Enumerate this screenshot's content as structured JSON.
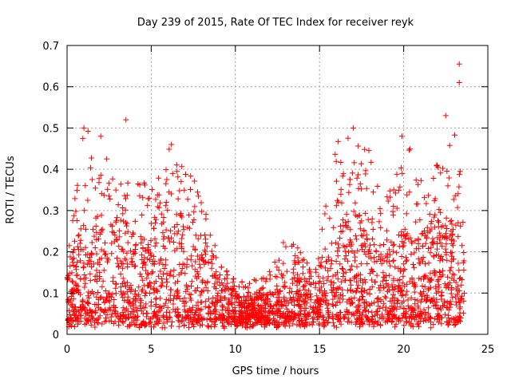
{
  "chart_data": {
    "type": "scatter",
    "title": "Day 239 of 2015, Rate Of TEC Index for receiver reyk",
    "xlabel": "GPS time / hours",
    "ylabel": "ROTI / TECUs",
    "xlim": [
      0,
      25
    ],
    "ylim": [
      0,
      0.7
    ],
    "x_ticks": [
      "0",
      "5",
      "10",
      "15",
      "20",
      "25"
    ],
    "y_ticks": [
      "0",
      "0.1",
      "0.2",
      "0.3",
      "0.4",
      "0.5",
      "0.6",
      "0.7"
    ],
    "grid": true,
    "marker": "+",
    "color": "#ff0000",
    "series": [
      {
        "name": "ROTI",
        "density_profile": [
          {
            "x": 0.0,
            "typical_max": 0.16,
            "peak": 0.18
          },
          {
            "x": 1.0,
            "typical_max": 0.28,
            "peak": 0.5
          },
          {
            "x": 2.0,
            "typical_max": 0.3,
            "peak": 0.48
          },
          {
            "x": 3.0,
            "typical_max": 0.3,
            "peak": 0.36
          },
          {
            "x": 4.0,
            "typical_max": 0.22,
            "peak": 0.39
          },
          {
            "x": 5.0,
            "typical_max": 0.25,
            "peak": 0.36
          },
          {
            "x": 6.0,
            "typical_max": 0.3,
            "peak": 0.46
          },
          {
            "x": 7.0,
            "typical_max": 0.3,
            "peak": 0.43
          },
          {
            "x": 8.0,
            "typical_max": 0.22,
            "peak": 0.33
          },
          {
            "x": 9.0,
            "typical_max": 0.15,
            "peak": 0.2
          },
          {
            "x": 10.0,
            "typical_max": 0.1,
            "peak": 0.13
          },
          {
            "x": 11.0,
            "typical_max": 0.09,
            "peak": 0.13
          },
          {
            "x": 12.0,
            "typical_max": 0.1,
            "peak": 0.15
          },
          {
            "x": 13.0,
            "typical_max": 0.13,
            "peak": 0.24
          },
          {
            "x": 14.0,
            "typical_max": 0.15,
            "peak": 0.22
          },
          {
            "x": 15.0,
            "typical_max": 0.17,
            "peak": 0.25
          },
          {
            "x": 16.0,
            "typical_max": 0.28,
            "peak": 0.47
          },
          {
            "x": 17.0,
            "typical_max": 0.3,
            "peak": 0.5
          },
          {
            "x": 18.0,
            "typical_max": 0.28,
            "peak": 0.45
          },
          {
            "x": 19.0,
            "typical_max": 0.22,
            "peak": 0.35
          },
          {
            "x": 20.0,
            "typical_max": 0.26,
            "peak": 0.48
          },
          {
            "x": 21.0,
            "typical_max": 0.25,
            "peak": 0.4
          },
          {
            "x": 22.0,
            "typical_max": 0.3,
            "peak": 0.44
          },
          {
            "x": 23.0,
            "typical_max": 0.28,
            "peak": 0.53
          },
          {
            "x": 23.6,
            "typical_max": 0.2,
            "peak": 0.31
          }
        ],
        "highlight_points": [
          {
            "x": 1.0,
            "y": 0.5
          },
          {
            "x": 2.0,
            "y": 0.48
          },
          {
            "x": 3.5,
            "y": 0.52
          },
          {
            "x": 6.2,
            "y": 0.46
          },
          {
            "x": 17.0,
            "y": 0.5
          },
          {
            "x": 19.9,
            "y": 0.48
          },
          {
            "x": 22.5,
            "y": 0.53
          },
          {
            "x": 23.3,
            "y": 0.655
          },
          {
            "x": 23.3,
            "y": 0.61
          }
        ]
      }
    ]
  }
}
